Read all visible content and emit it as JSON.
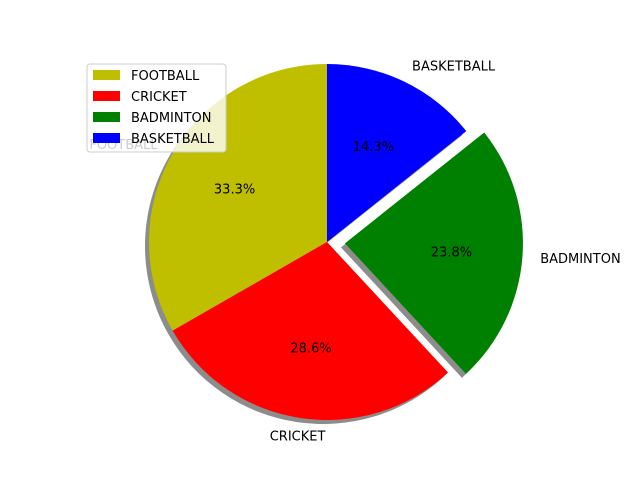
{
  "chart_data": {
    "type": "pie",
    "title": "",
    "categories": [
      "FOOTBALL",
      "CRICKET",
      "BADMINTON",
      "BASKETBALL"
    ],
    "values": [
      33.3,
      28.6,
      23.8,
      14.3
    ],
    "percent_labels": [
      "33.3%",
      "28.6%",
      "23.8%",
      "14.3%"
    ],
    "colors": [
      "#bfbf00",
      "#ff0000",
      "#008000",
      "#0000ff"
    ],
    "exploded": [
      false,
      false,
      true,
      false
    ],
    "shadow": true,
    "legend": {
      "placement": "top-left",
      "entries": [
        "FOOTBALL",
        "CRICKET",
        "BADMINTON",
        "BASKETBALL"
      ]
    }
  }
}
